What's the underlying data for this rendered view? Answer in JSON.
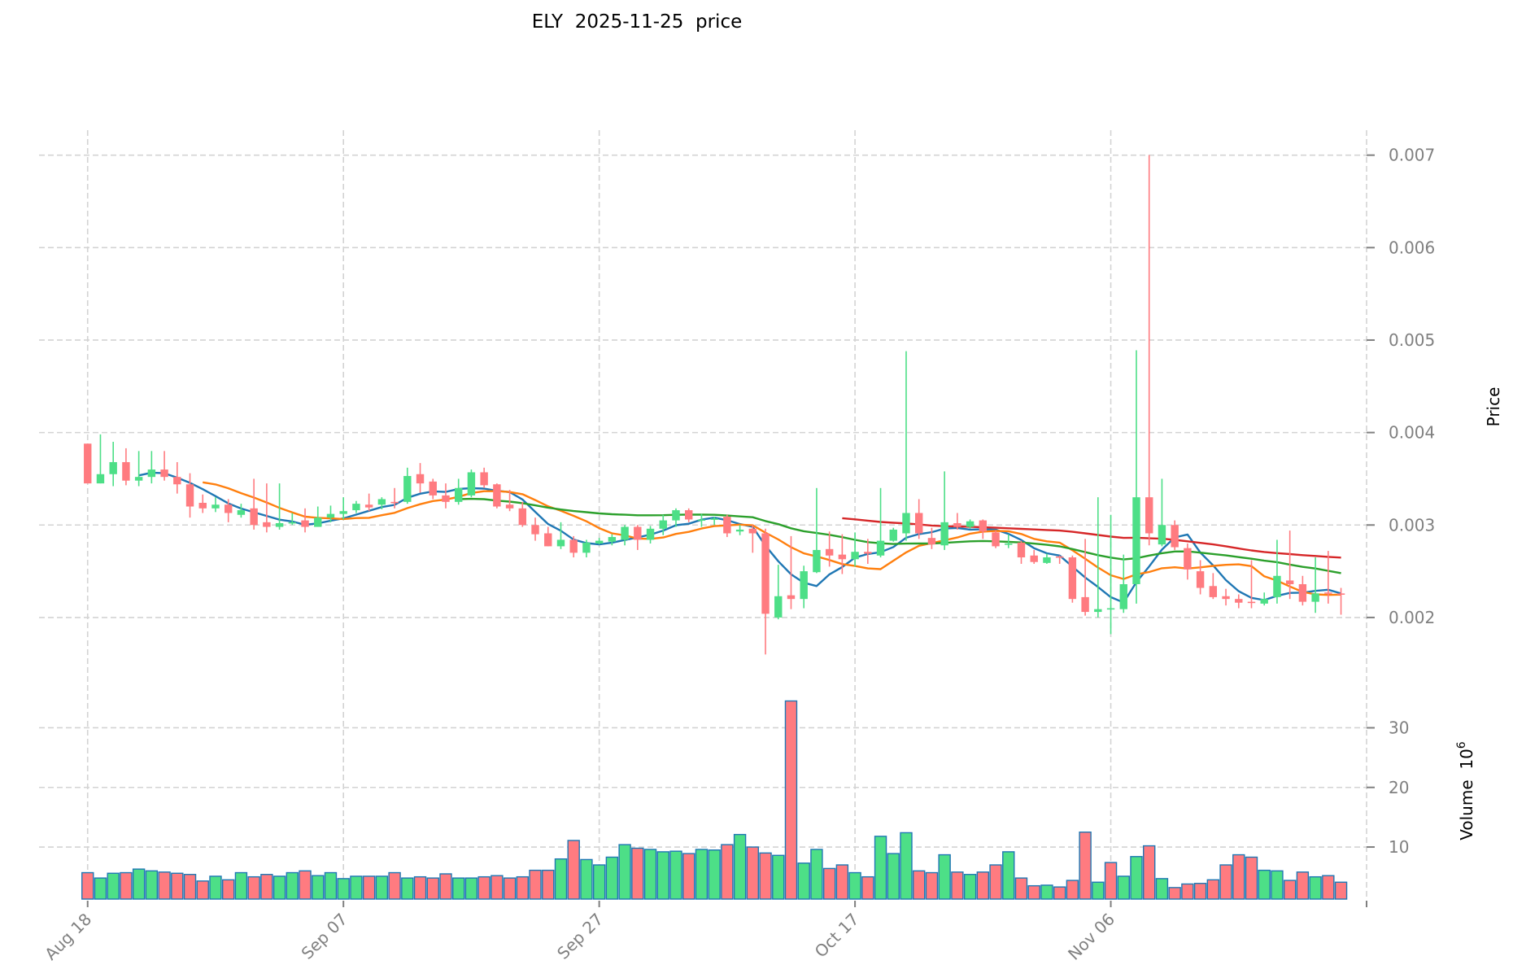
{
  "chart_data": {
    "type": "candlestick",
    "title": "ELY  2025-11-25  price",
    "price_ylabel": "Price",
    "volume_ylabel": "Volume",
    "volume_exponent": "10",
    "volume_exponent_power": "6",
    "start_date": "2025-08-18",
    "x_tick_labels": [
      "Aug 18",
      "Sep 07",
      "Sep 27",
      "Oct 17",
      "Nov 06",
      ""
    ],
    "x_tick_days": [
      0,
      20,
      40,
      60,
      80,
      100
    ],
    "xlim_days": [
      -3.8,
      100
    ],
    "price_ylim": [
      0.00148,
      0.00727
    ],
    "price_ticks": [
      0.002,
      0.003,
      0.004,
      0.005,
      0.006,
      0.007
    ],
    "price_tick_labels": [
      "0.002",
      "0.003",
      "0.004",
      "0.005",
      "0.006",
      "0.007"
    ],
    "volume_ylim": [
      1.27,
      38.8
    ],
    "volume_ticks": [
      10,
      20,
      30
    ],
    "volume_tick_labels": [
      "10",
      "20",
      "30"
    ],
    "grid": true,
    "colors": {
      "up": "#4ddf87",
      "down": "#ff7b80",
      "volume_edge": "#1f77b4",
      "ma5": "#1f77b4",
      "ma10": "#ff7f0e",
      "ma30": "#2ca02c",
      "ma60": "#d62728"
    },
    "moving_averages": [
      5,
      10,
      30,
      60
    ],
    "ohlc": [
      [
        0.00388,
        0.00388,
        0.00345,
        0.00345
      ],
      [
        0.00345,
        0.00398,
        0.00345,
        0.00355
      ],
      [
        0.00355,
        0.0039,
        0.00342,
        0.00368
      ],
      [
        0.00368,
        0.00383,
        0.00343,
        0.00348
      ],
      [
        0.00348,
        0.0038,
        0.00342,
        0.00352
      ],
      [
        0.00352,
        0.0038,
        0.00345,
        0.0036
      ],
      [
        0.0036,
        0.0038,
        0.00348,
        0.00352
      ],
      [
        0.00352,
        0.00368,
        0.00334,
        0.00344
      ],
      [
        0.00344,
        0.00356,
        0.00308,
        0.0032
      ],
      [
        0.00324,
        0.00333,
        0.00313,
        0.00318
      ],
      [
        0.00318,
        0.0033,
        0.00314,
        0.00322
      ],
      [
        0.00322,
        0.00328,
        0.00303,
        0.00313
      ],
      [
        0.00311,
        0.00323,
        0.00308,
        0.00316
      ],
      [
        0.00318,
        0.0035,
        0.00295,
        0.003
      ],
      [
        0.00303,
        0.00345,
        0.00292,
        0.00298
      ],
      [
        0.00298,
        0.00345,
        0.00295,
        0.00302
      ],
      [
        0.00302,
        0.00313,
        0.003,
        0.00303
      ],
      [
        0.00305,
        0.00318,
        0.00292,
        0.00298
      ],
      [
        0.00298,
        0.0032,
        0.00298,
        0.00308
      ],
      [
        0.00308,
        0.00321,
        0.00303,
        0.00312
      ],
      [
        0.00312,
        0.0033,
        0.00306,
        0.00315
      ],
      [
        0.00316,
        0.00326,
        0.00313,
        0.00323
      ],
      [
        0.00322,
        0.00334,
        0.00315,
        0.00319
      ],
      [
        0.00322,
        0.0033,
        0.00317,
        0.00328
      ],
      [
        0.00325,
        0.0034,
        0.00318,
        0.00324
      ],
      [
        0.00325,
        0.00362,
        0.00323,
        0.00353
      ],
      [
        0.00355,
        0.00367,
        0.00335,
        0.00345
      ],
      [
        0.00347,
        0.0035,
        0.00328,
        0.00332
      ],
      [
        0.00332,
        0.00345,
        0.00318,
        0.00325
      ],
      [
        0.00325,
        0.0035,
        0.00322,
        0.0034
      ],
      [
        0.00332,
        0.0036,
        0.0033,
        0.00357
      ],
      [
        0.00357,
        0.00362,
        0.0034,
        0.00343
      ],
      [
        0.00344,
        0.00345,
        0.00318,
        0.0032
      ],
      [
        0.00322,
        0.00338,
        0.00315,
        0.00318
      ],
      [
        0.00318,
        0.00325,
        0.00298,
        0.003
      ],
      [
        0.003,
        0.00308,
        0.00283,
        0.0029
      ],
      [
        0.00291,
        0.00298,
        0.00277,
        0.00277
      ],
      [
        0.00277,
        0.00303,
        0.00274,
        0.00284
      ],
      [
        0.00284,
        0.00288,
        0.00265,
        0.0027
      ],
      [
        0.0027,
        0.00284,
        0.00265,
        0.00281
      ],
      [
        0.0028,
        0.00286,
        0.00279,
        0.00283
      ],
      [
        0.00282,
        0.0029,
        0.00278,
        0.00287
      ],
      [
        0.00284,
        0.003,
        0.00278,
        0.00298
      ],
      [
        0.00298,
        0.003,
        0.00273,
        0.00284
      ],
      [
        0.00284,
        0.00299,
        0.0028,
        0.00296
      ],
      [
        0.00296,
        0.00311,
        0.00289,
        0.00305
      ],
      [
        0.00305,
        0.00318,
        0.00298,
        0.00316
      ],
      [
        0.00316,
        0.00318,
        0.00303,
        0.00306
      ],
      [
        0.00305,
        0.00312,
        0.00298,
        0.00306
      ],
      [
        0.00306,
        0.00309,
        0.003,
        0.00307
      ],
      [
        0.00309,
        0.00311,
        0.00287,
        0.00291
      ],
      [
        0.00293,
        0.003,
        0.00289,
        0.00295
      ],
      [
        0.00296,
        0.003,
        0.0027,
        0.00291
      ],
      [
        0.00291,
        0.00296,
        0.0016,
        0.00204
      ],
      [
        0.002,
        0.00257,
        0.00198,
        0.00223
      ],
      [
        0.00224,
        0.00288,
        0.00209,
        0.0022
      ],
      [
        0.0022,
        0.00256,
        0.0021,
        0.0025
      ],
      [
        0.00249,
        0.0034,
        0.00248,
        0.00273
      ],
      [
        0.00274,
        0.00293,
        0.00255,
        0.00267
      ],
      [
        0.00268,
        0.0029,
        0.00247,
        0.00263
      ],
      [
        0.00263,
        0.00292,
        0.00255,
        0.00271
      ],
      [
        0.00271,
        0.00285,
        0.00258,
        0.00269
      ],
      [
        0.00267,
        0.0034,
        0.00265,
        0.00283
      ],
      [
        0.00283,
        0.00297,
        0.00282,
        0.00295
      ],
      [
        0.00291,
        0.00488,
        0.00283,
        0.00313
      ],
      [
        0.00313,
        0.00328,
        0.00285,
        0.00291
      ],
      [
        0.00286,
        0.00297,
        0.00274,
        0.00279
      ],
      [
        0.00278,
        0.00358,
        0.00273,
        0.00303
      ],
      [
        0.00302,
        0.00313,
        0.00295,
        0.00298
      ],
      [
        0.00298,
        0.00306,
        0.00296,
        0.00304
      ],
      [
        0.00305,
        0.00306,
        0.00285,
        0.00293
      ],
      [
        0.00292,
        0.00294,
        0.00275,
        0.00277
      ],
      [
        0.00279,
        0.0029,
        0.00275,
        0.0028
      ],
      [
        0.00281,
        0.00283,
        0.00258,
        0.00265
      ],
      [
        0.00267,
        0.00273,
        0.00258,
        0.0026
      ],
      [
        0.00259,
        0.00269,
        0.00258,
        0.00265
      ],
      [
        0.00266,
        0.00267,
        0.00258,
        0.00265
      ],
      [
        0.00265,
        0.00267,
        0.00216,
        0.0022
      ],
      [
        0.00222,
        0.00285,
        0.00202,
        0.00206
      ],
      [
        0.00206,
        0.0033,
        0.002,
        0.00209
      ],
      [
        0.0021,
        0.00311,
        0.00182,
        0.0021
      ],
      [
        0.00209,
        0.00268,
        0.00205,
        0.00236
      ],
      [
        0.00236,
        0.00489,
        0.00215,
        0.0033
      ],
      [
        0.0033,
        0.007,
        0.00278,
        0.00291
      ],
      [
        0.00279,
        0.0035,
        0.00277,
        0.003
      ],
      [
        0.003,
        0.00305,
        0.00273,
        0.00276
      ],
      [
        0.00275,
        0.0028,
        0.00241,
        0.00252
      ],
      [
        0.0025,
        0.00262,
        0.00225,
        0.00232
      ],
      [
        0.00234,
        0.00248,
        0.0022,
        0.00222
      ],
      [
        0.00223,
        0.00231,
        0.00213,
        0.0022
      ],
      [
        0.0022,
        0.00225,
        0.0021,
        0.00216
      ],
      [
        0.00217,
        0.00262,
        0.0021,
        0.00216
      ],
      [
        0.00215,
        0.00227,
        0.00213,
        0.0022
      ],
      [
        0.00222,
        0.00284,
        0.00215,
        0.00245
      ],
      [
        0.0024,
        0.00294,
        0.0022,
        0.00236
      ],
      [
        0.00236,
        0.00245,
        0.00213,
        0.00217
      ],
      [
        0.00217,
        0.00265,
        0.00205,
        0.00226
      ],
      [
        0.00227,
        0.00272,
        0.00215,
        0.00226
      ],
      [
        0.00226,
        0.00232,
        0.00203,
        0.00225
      ]
    ],
    "volume_millions": [
      5.7,
      4.8,
      5.6,
      5.7,
      6.3,
      6.0,
      5.8,
      5.6,
      5.4,
      4.3,
      5.1,
      4.5,
      5.7,
      5.0,
      5.4,
      5.1,
      5.7,
      6.0,
      5.2,
      5.7,
      4.7,
      5.1,
      5.1,
      5.1,
      5.7,
      4.8,
      5.0,
      4.8,
      5.5,
      4.8,
      4.8,
      5.0,
      5.2,
      4.8,
      5.0,
      6.1,
      6.1,
      8.0,
      11.1,
      7.9,
      7.0,
      8.3,
      10.4,
      9.8,
      9.6,
      9.2,
      9.3,
      8.9,
      9.6,
      9.5,
      10.4,
      12.1,
      10.0,
      9.0,
      8.6,
      34.5,
      7.3,
      9.6,
      6.4,
      7.0,
      5.7,
      5.0,
      11.8,
      8.9,
      12.4,
      6.0,
      5.7,
      8.7,
      5.8,
      5.4,
      5.8,
      7.0,
      9.2,
      4.8,
      3.5,
      3.6,
      3.3,
      4.4,
      12.5,
      4.1,
      7.4,
      5.1,
      8.4,
      10.2,
      4.7,
      3.2,
      3.8,
      3.9,
      4.5,
      7.0,
      8.7,
      8.3,
      6.1,
      6.0,
      4.4,
      5.8,
      5.0,
      5.2,
      4.1
    ],
    "volume_direction": "RGGRGGRRRRGRGRRGGRGGGGRGRGRRRGGRRRRRRGRGGGGRGGGRGGRGRRGRGGRRGRGGGRRGRGRRGRRGRRRGRGGRGRRRRRRRGGRRGRR"
  }
}
